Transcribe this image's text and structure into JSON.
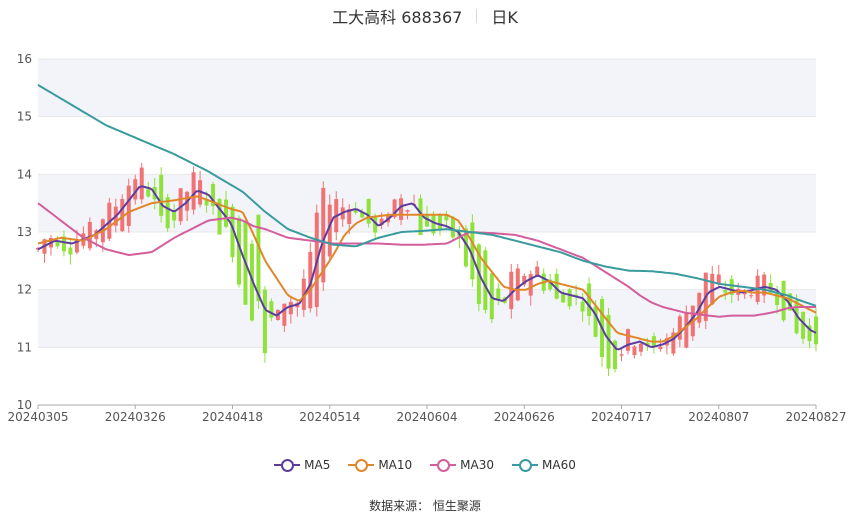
{
  "header": {
    "title": "工大高科 688367",
    "period": "日K"
  },
  "source": "数据来源： 恒生聚源",
  "colors": {
    "up": "#f07272",
    "down": "#8ee23a",
    "grid": "#e8e8e8",
    "band": "#f2f4fa",
    "axis": "#555555"
  },
  "chart_data": {
    "type": "candlestick",
    "title": "",
    "ylim": [
      10,
      16
    ],
    "yticks": [
      10,
      11,
      12,
      13,
      14,
      15,
      16
    ],
    "xlabels": [
      "20240305",
      "20240326",
      "20240418",
      "20240514",
      "20240604",
      "20240626",
      "20240717",
      "20240807",
      "20240827"
    ],
    "n": 121,
    "legend_position": "bottom",
    "series": [
      {
        "name": "MA5",
        "color": "#5c3d9e",
        "anchors": [
          [
            0,
            12.7
          ],
          [
            3,
            12.85
          ],
          [
            6,
            12.8
          ],
          [
            10,
            12.95
          ],
          [
            14,
            13.3
          ],
          [
            18,
            13.8
          ],
          [
            20,
            13.75
          ],
          [
            22,
            13.45
          ],
          [
            24,
            13.35
          ],
          [
            26,
            13.5
          ],
          [
            28,
            13.72
          ],
          [
            30,
            13.65
          ],
          [
            32,
            13.4
          ],
          [
            34,
            13.15
          ],
          [
            36,
            12.6
          ],
          [
            38,
            12.1
          ],
          [
            40,
            11.65
          ],
          [
            42,
            11.55
          ],
          [
            44,
            11.7
          ],
          [
            46,
            11.75
          ],
          [
            48,
            12.1
          ],
          [
            50,
            12.8
          ],
          [
            52,
            13.25
          ],
          [
            54,
            13.35
          ],
          [
            56,
            13.4
          ],
          [
            58,
            13.3
          ],
          [
            60,
            13.1
          ],
          [
            62,
            13.25
          ],
          [
            64,
            13.45
          ],
          [
            66,
            13.5
          ],
          [
            68,
            13.25
          ],
          [
            70,
            13.15
          ],
          [
            72,
            13.1
          ],
          [
            74,
            13.0
          ],
          [
            76,
            12.7
          ],
          [
            78,
            12.2
          ],
          [
            80,
            11.85
          ],
          [
            82,
            11.8
          ],
          [
            84,
            12.0
          ],
          [
            86,
            12.15
          ],
          [
            88,
            12.25
          ],
          [
            90,
            12.15
          ],
          [
            92,
            11.95
          ],
          [
            94,
            11.9
          ],
          [
            96,
            11.85
          ],
          [
            98,
            11.6
          ],
          [
            100,
            11.2
          ],
          [
            102,
            10.95
          ],
          [
            104,
            11.05
          ],
          [
            106,
            11.1
          ],
          [
            108,
            11.0
          ],
          [
            110,
            11.05
          ],
          [
            112,
            11.15
          ],
          [
            114,
            11.35
          ],
          [
            116,
            11.6
          ],
          [
            118,
            11.95
          ],
          [
            120,
            12.05
          ],
          [
            122,
            12.0
          ],
          [
            124,
            11.95
          ],
          [
            126,
            12.0
          ],
          [
            128,
            12.05
          ],
          [
            130,
            12.0
          ],
          [
            132,
            11.8
          ],
          [
            134,
            11.5
          ],
          [
            136,
            11.3
          ],
          [
            137,
            11.25
          ]
        ]
      },
      {
        "name": "MA10",
        "color": "#e0872a",
        "anchors": [
          [
            0,
            12.8
          ],
          [
            4,
            12.9
          ],
          [
            8,
            12.85
          ],
          [
            12,
            13.05
          ],
          [
            16,
            13.35
          ],
          [
            20,
            13.5
          ],
          [
            24,
            13.55
          ],
          [
            28,
            13.62
          ],
          [
            30,
            13.55
          ],
          [
            34,
            13.4
          ],
          [
            36,
            13.35
          ],
          [
            38,
            12.95
          ],
          [
            40,
            12.5
          ],
          [
            42,
            12.2
          ],
          [
            44,
            11.9
          ],
          [
            46,
            11.8
          ],
          [
            48,
            12.0
          ],
          [
            50,
            12.3
          ],
          [
            52,
            12.6
          ],
          [
            54,
            12.95
          ],
          [
            56,
            13.15
          ],
          [
            58,
            13.25
          ],
          [
            62,
            13.3
          ],
          [
            66,
            13.3
          ],
          [
            70,
            13.3
          ],
          [
            72,
            13.3
          ],
          [
            74,
            13.2
          ],
          [
            76,
            12.9
          ],
          [
            78,
            12.55
          ],
          [
            80,
            12.3
          ],
          [
            82,
            12.05
          ],
          [
            84,
            12.0
          ],
          [
            86,
            12.0
          ],
          [
            88,
            12.1
          ],
          [
            90,
            12.15
          ],
          [
            92,
            12.1
          ],
          [
            94,
            12.05
          ],
          [
            96,
            12.0
          ],
          [
            98,
            11.75
          ],
          [
            100,
            11.5
          ],
          [
            102,
            11.25
          ],
          [
            104,
            11.2
          ],
          [
            106,
            11.15
          ],
          [
            108,
            11.1
          ],
          [
            110,
            11.1
          ],
          [
            112,
            11.2
          ],
          [
            114,
            11.35
          ],
          [
            116,
            11.5
          ],
          [
            118,
            11.7
          ],
          [
            120,
            11.88
          ],
          [
            122,
            11.95
          ],
          [
            124,
            11.98
          ],
          [
            126,
            11.95
          ],
          [
            128,
            11.95
          ],
          [
            130,
            11.9
          ],
          [
            132,
            11.85
          ],
          [
            134,
            11.75
          ],
          [
            136,
            11.65
          ],
          [
            137,
            11.6
          ]
        ]
      },
      {
        "name": "MA30",
        "color": "#d45e9c",
        "anchors": [
          [
            0,
            13.5
          ],
          [
            4,
            13.2
          ],
          [
            8,
            12.9
          ],
          [
            12,
            12.7
          ],
          [
            16,
            12.6
          ],
          [
            20,
            12.65
          ],
          [
            24,
            12.9
          ],
          [
            28,
            13.1
          ],
          [
            30,
            13.2
          ],
          [
            34,
            13.25
          ],
          [
            36,
            13.2
          ],
          [
            38,
            13.1
          ],
          [
            40,
            13.05
          ],
          [
            44,
            12.9
          ],
          [
            48,
            12.85
          ],
          [
            52,
            12.8
          ],
          [
            56,
            12.8
          ],
          [
            60,
            12.8
          ],
          [
            64,
            12.78
          ],
          [
            68,
            12.78
          ],
          [
            72,
            12.8
          ],
          [
            74,
            12.9
          ],
          [
            76,
            13.0
          ],
          [
            80,
            12.98
          ],
          [
            84,
            12.95
          ],
          [
            88,
            12.85
          ],
          [
            92,
            12.7
          ],
          [
            96,
            12.55
          ],
          [
            100,
            12.3
          ],
          [
            104,
            12.05
          ],
          [
            106,
            11.9
          ],
          [
            108,
            11.78
          ],
          [
            110,
            11.7
          ],
          [
            114,
            11.6
          ],
          [
            118,
            11.55
          ],
          [
            120,
            11.53
          ],
          [
            122,
            11.55
          ],
          [
            124,
            11.55
          ],
          [
            126,
            11.55
          ],
          [
            128,
            11.58
          ],
          [
            130,
            11.62
          ],
          [
            132,
            11.68
          ],
          [
            134,
            11.7
          ],
          [
            137,
            11.7
          ]
        ]
      },
      {
        "name": "MA60",
        "color": "#3a9b9e",
        "anchors": [
          [
            0,
            15.55
          ],
          [
            6,
            15.2
          ],
          [
            12,
            14.85
          ],
          [
            18,
            14.6
          ],
          [
            24,
            14.35
          ],
          [
            30,
            14.05
          ],
          [
            36,
            13.7
          ],
          [
            40,
            13.35
          ],
          [
            44,
            13.05
          ],
          [
            48,
            12.9
          ],
          [
            52,
            12.78
          ],
          [
            56,
            12.75
          ],
          [
            60,
            12.9
          ],
          [
            64,
            13.0
          ],
          [
            68,
            13.02
          ],
          [
            72,
            13.05
          ],
          [
            76,
            13.0
          ],
          [
            80,
            12.95
          ],
          [
            84,
            12.85
          ],
          [
            88,
            12.75
          ],
          [
            92,
            12.65
          ],
          [
            96,
            12.5
          ],
          [
            100,
            12.4
          ],
          [
            104,
            12.33
          ],
          [
            108,
            12.32
          ],
          [
            112,
            12.28
          ],
          [
            116,
            12.2
          ],
          [
            120,
            12.1
          ],
          [
            124,
            12.05
          ],
          [
            128,
            12.0
          ],
          [
            132,
            11.9
          ],
          [
            134,
            11.82
          ],
          [
            137,
            11.72
          ]
        ]
      }
    ]
  }
}
